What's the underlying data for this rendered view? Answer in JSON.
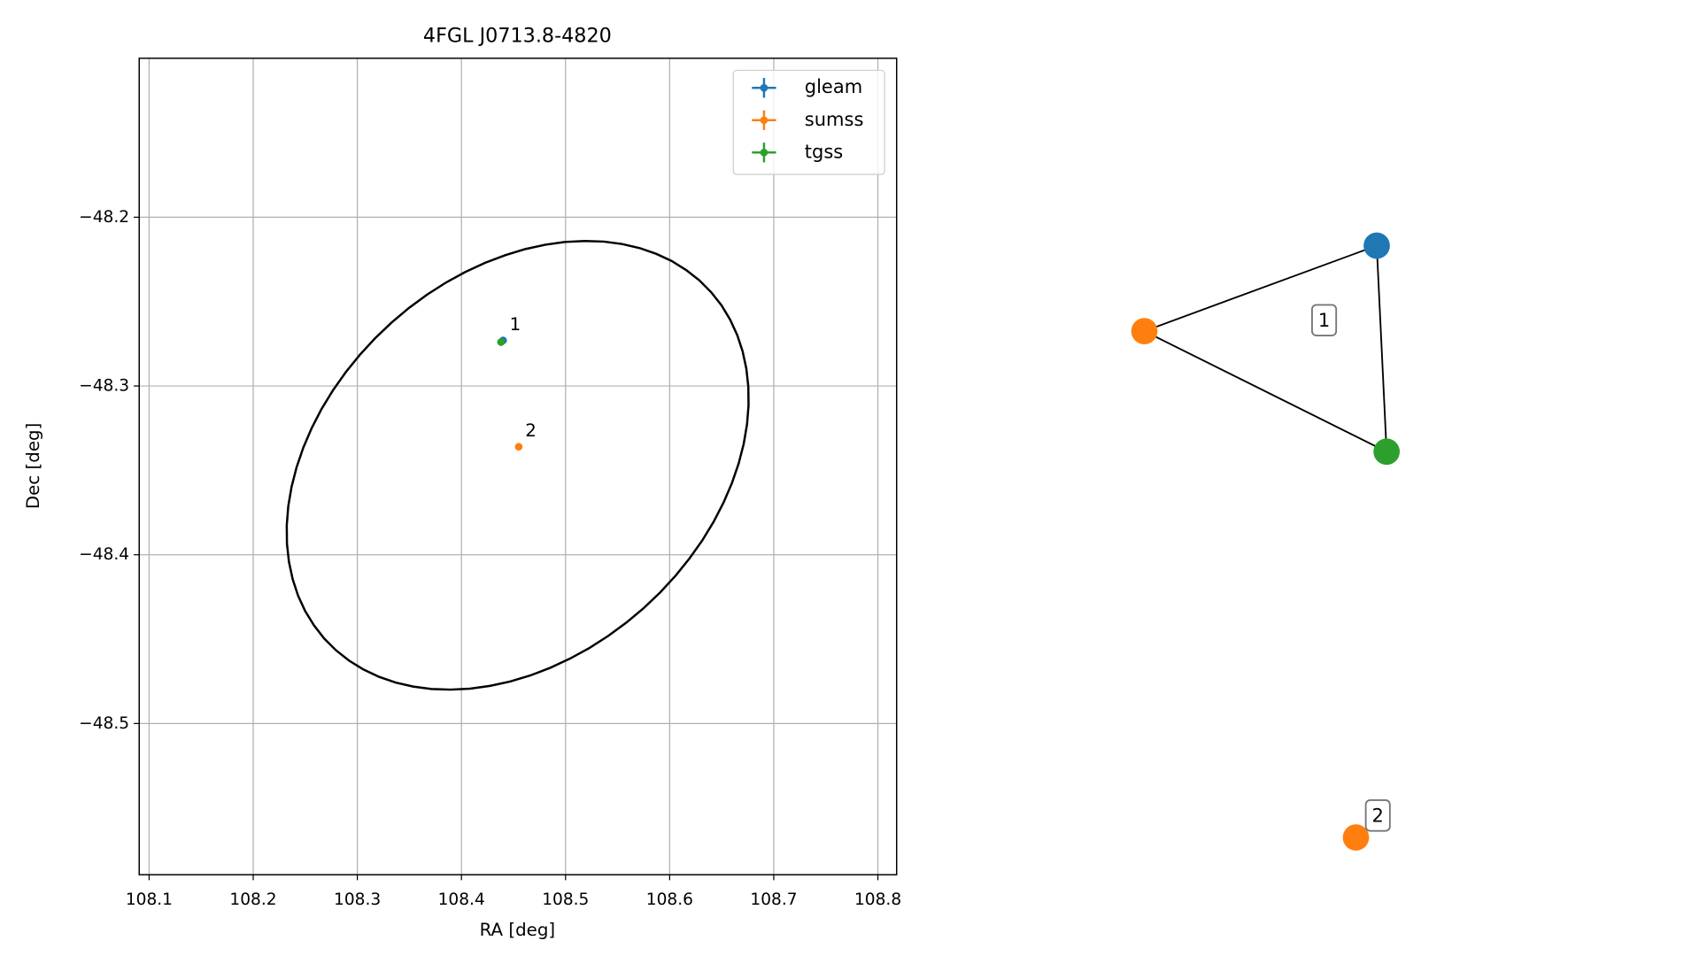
{
  "chart_data": [
    {
      "type": "scatter",
      "title": "4FGL J0713.8-4820",
      "x_label": "RA [deg]",
      "y_label": "Dec [deg]",
      "series": [
        {
          "name": "gleam",
          "color": "#1f77b4",
          "x": [
            108.44
          ],
          "values": [
            -48.273
          ]
        },
        {
          "name": "sumss",
          "color": "#ff7f0e",
          "x": [
            108.455
          ],
          "values": [
            -48.336
          ]
        },
        {
          "name": "tgss",
          "color": "#2ca02c",
          "x": [
            108.438
          ],
          "values": [
            -48.274
          ]
        }
      ],
      "annotations": [
        {
          "text": "1",
          "x": 108.44,
          "y": -48.273
        },
        {
          "text": "2",
          "x": 108.455,
          "y": -48.336
        }
      ],
      "ellipse": {
        "center_x": 108.454,
        "center_y": -48.347,
        "semi_major": 0.227,
        "semi_minor": 0.124,
        "angle": 14.6,
        "color": "#000000"
      },
      "xlim": [
        108.0905,
        108.818
      ],
      "ylim": [
        -48.5896,
        -48.1058
      ],
      "xticks": [
        108.1,
        108.2,
        108.3,
        108.4,
        108.5,
        108.6,
        108.7,
        108.8
      ],
      "yticks": [
        {
          "value": -48.5,
          "label": "−48.5"
        },
        {
          "value": -48.4,
          "label": "−48.4"
        },
        {
          "value": -48.3,
          "label": "−48.3"
        },
        {
          "value": -48.2,
          "label": "−48.2"
        }
      ],
      "grid": true,
      "legend": "upper right"
    },
    {
      "type": "graph",
      "groups": [
        {
          "label": "1",
          "nodes": [
            {
              "color": "#1f77b4"
            },
            {
              "color": "#ff7f0e"
            },
            {
              "color": "#2ca02c"
            }
          ]
        },
        {
          "label": "2",
          "nodes": [
            {
              "color": "#ff7f0e"
            }
          ]
        }
      ]
    }
  ]
}
